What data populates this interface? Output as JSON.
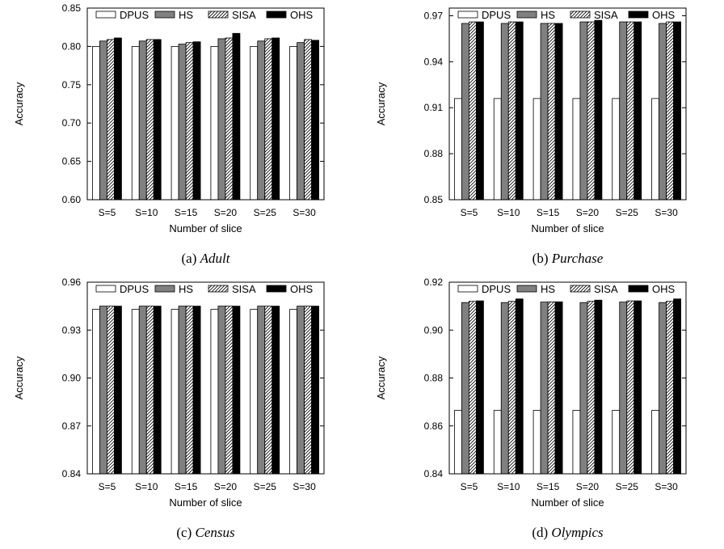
{
  "legend": [
    "DPUS",
    "HS",
    "SISA",
    "OHS"
  ],
  "series_colors": {
    "DPUS": "#ffffff",
    "HS": "#808080",
    "SISA": "hatch",
    "OHS": "#000000"
  },
  "chart_data": [
    {
      "type": "bar",
      "panel": "a",
      "caption_prefix": "(a)",
      "caption_name": "Adult",
      "xlabel": "Number of slice",
      "ylabel": "Accuracy",
      "categories": [
        "S=5",
        "S=10",
        "S=15",
        "S=20",
        "S=25",
        "S=30"
      ],
      "ylim": [
        0.6,
        0.85
      ],
      "yticks": [
        "0.60",
        "0.65",
        "0.70",
        "0.75",
        "0.80",
        "0.85"
      ],
      "legend_position": "top",
      "series": [
        {
          "name": "DPUS",
          "values": [
            0.8,
            0.8,
            0.8,
            0.8,
            0.8,
            0.8
          ]
        },
        {
          "name": "HS",
          "values": [
            0.807,
            0.807,
            0.803,
            0.81,
            0.807,
            0.805
          ]
        },
        {
          "name": "SISA",
          "values": [
            0.809,
            0.809,
            0.805,
            0.811,
            0.81,
            0.809
          ]
        },
        {
          "name": "OHS",
          "values": [
            0.811,
            0.809,
            0.806,
            0.817,
            0.811,
            0.808
          ]
        }
      ]
    },
    {
      "type": "bar",
      "panel": "b",
      "caption_prefix": "(b)",
      "caption_name": "Purchase",
      "xlabel": "Number of slice",
      "ylabel": "Accuracy",
      "categories": [
        "S=5",
        "S=10",
        "S=15",
        "S=20",
        "S=25",
        "S=30"
      ],
      "ylim": [
        0.85,
        0.975
      ],
      "yticks": [
        "0.85",
        "0.88",
        "0.91",
        "0.94",
        "0.97"
      ],
      "legend_position": "top",
      "series": [
        {
          "name": "DPUS",
          "values": [
            0.916,
            0.916,
            0.916,
            0.916,
            0.916,
            0.916
          ]
        },
        {
          "name": "HS",
          "values": [
            0.965,
            0.965,
            0.965,
            0.966,
            0.966,
            0.965
          ]
        },
        {
          "name": "SISA",
          "values": [
            0.966,
            0.966,
            0.965,
            0.966,
            0.966,
            0.966
          ]
        },
        {
          "name": "OHS",
          "values": [
            0.966,
            0.966,
            0.965,
            0.967,
            0.966,
            0.966
          ]
        }
      ]
    },
    {
      "type": "bar",
      "panel": "c",
      "caption_prefix": "(c)",
      "caption_name": "Census",
      "xlabel": "Number of slice",
      "ylabel": "Accuracy",
      "categories": [
        "S=5",
        "S=10",
        "S=15",
        "S=20",
        "S=25",
        "S=30"
      ],
      "ylim": [
        0.84,
        0.96
      ],
      "yticks": [
        "0.84",
        "0.87",
        "0.90",
        "0.93",
        "0.96"
      ],
      "legend_position": "top",
      "series": [
        {
          "name": "DPUS",
          "values": [
            0.943,
            0.943,
            0.943,
            0.943,
            0.943,
            0.943
          ]
        },
        {
          "name": "HS",
          "values": [
            0.945,
            0.945,
            0.945,
            0.945,
            0.945,
            0.945
          ]
        },
        {
          "name": "SISA",
          "values": [
            0.945,
            0.945,
            0.945,
            0.945,
            0.945,
            0.945
          ]
        },
        {
          "name": "OHS",
          "values": [
            0.945,
            0.945,
            0.945,
            0.945,
            0.945,
            0.945
          ]
        }
      ]
    },
    {
      "type": "bar",
      "panel": "d",
      "caption_prefix": "(d)",
      "caption_name": "Olympics",
      "xlabel": "Number of slice",
      "ylabel": "Accuracy",
      "categories": [
        "S=5",
        "S=10",
        "S=15",
        "S=20",
        "S=25",
        "S=30"
      ],
      "ylim": [
        0.84,
        0.92
      ],
      "yticks": [
        "0.84",
        "0.86",
        "0.88",
        "0.90",
        "0.92"
      ],
      "legend_position": "top",
      "series": [
        {
          "name": "DPUS",
          "values": [
            0.8665,
            0.8665,
            0.8665,
            0.8665,
            0.8665,
            0.8665
          ]
        },
        {
          "name": "HS",
          "values": [
            0.9115,
            0.9115,
            0.9117,
            0.9115,
            0.9117,
            0.9115
          ]
        },
        {
          "name": "SISA",
          "values": [
            0.912,
            0.912,
            0.9118,
            0.912,
            0.9122,
            0.912
          ]
        },
        {
          "name": "OHS",
          "values": [
            0.9122,
            0.913,
            0.9118,
            0.9125,
            0.9122,
            0.913
          ]
        }
      ]
    }
  ]
}
